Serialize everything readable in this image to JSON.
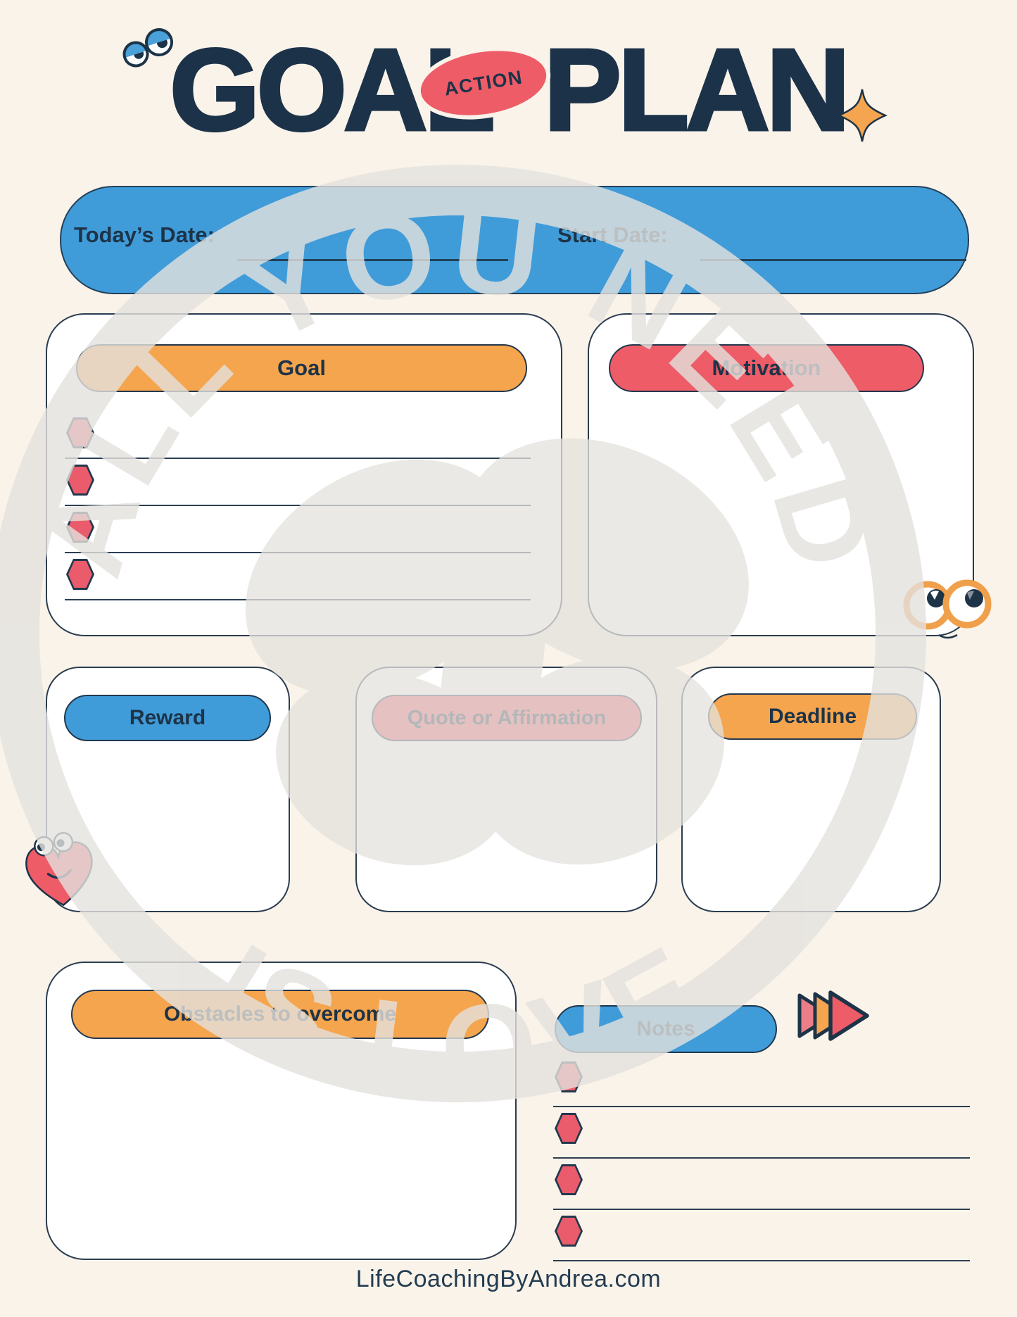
{
  "title": {
    "word1": "GOAL",
    "word2": "PLAN",
    "badge_label": "ACTION"
  },
  "date_banner": {
    "today_label": "Today’s Date:",
    "today_value": "",
    "start_label": "Start Date:",
    "start_value": ""
  },
  "sections": {
    "goal": {
      "heading": "Goal",
      "bullet_count": 4,
      "bullet_values": [
        "",
        "",
        "",
        ""
      ]
    },
    "motivation": {
      "heading": "Motivation",
      "content": ""
    },
    "reward": {
      "heading": "Reward",
      "content": ""
    },
    "quote": {
      "heading": "Quote or Affirmation",
      "content": ""
    },
    "deadline": {
      "heading": "Deadline",
      "content": ""
    },
    "obstacles": {
      "heading": "Obstacles to overcome",
      "content": ""
    },
    "notes": {
      "heading": "Notes",
      "bullet_count": 4,
      "bullet_values": [
        "",
        "",
        "",
        ""
      ]
    }
  },
  "watermark": {
    "arc_top": "ALL YOU NEED",
    "arc_bottom": "IS LOVE"
  },
  "footer": {
    "url_text": "LifeCoachingByAndrea.com"
  },
  "icons": {
    "googly_eyes": "sleepy-googly-eyes",
    "sparkle": "four-point-star",
    "motivation_eyes": "googly-eyes",
    "reward_heart": "smiling-heart",
    "notes_arrows": "fast-forward-arrows",
    "bullet": "red-hexagon"
  },
  "colors": {
    "background": "#faf3e9",
    "navy": "#1d3348",
    "blue": "#3f9cd9",
    "orange": "#f5a54e",
    "red": "#ee5c68",
    "stamp_gray": "#e4e2de"
  }
}
